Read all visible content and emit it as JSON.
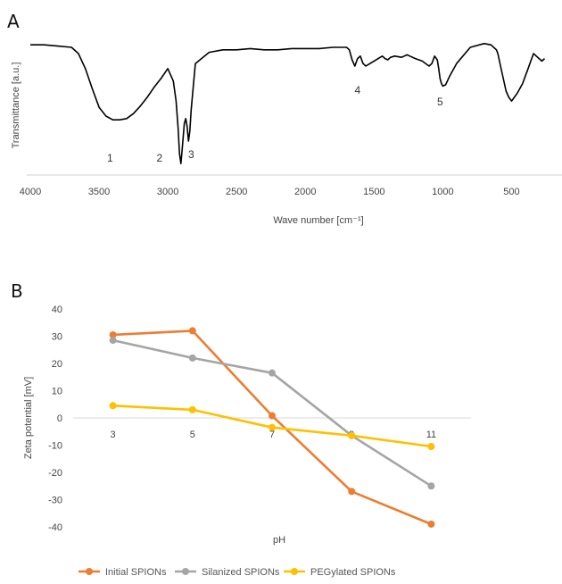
{
  "chart_data": [
    {
      "panel": "A",
      "type": "line",
      "xlabel": "Wave number [cm⁻¹]",
      "ylabel": "Transmittance [a.u.]",
      "xlim": [
        4000,
        250
      ],
      "x_ticks": [
        "4000",
        "3500",
        "3000",
        "2500",
        "2000",
        "1500",
        "1000",
        "500"
      ],
      "x_tick_values": [
        4000,
        3500,
        3000,
        2500,
        2000,
        1500,
        1000,
        500
      ],
      "grid": false,
      "series": [
        {
          "color": "#000000",
          "x": [
            4000,
            3900,
            3800,
            3700,
            3650,
            3600,
            3550,
            3500,
            3450,
            3400,
            3350,
            3300,
            3250,
            3200,
            3150,
            3100,
            3050,
            3000,
            2960,
            2940,
            2925,
            2915,
            2905,
            2895,
            2880,
            2870,
            2860,
            2850,
            2840,
            2830,
            2800,
            2700,
            2600,
            2500,
            2400,
            2300,
            2200,
            2100,
            2000,
            1900,
            1800,
            1700,
            1680,
            1660,
            1640,
            1620,
            1600,
            1580,
            1560,
            1530,
            1500,
            1470,
            1440,
            1420,
            1400,
            1380,
            1350,
            1300,
            1260,
            1240,
            1200,
            1150,
            1100,
            1080,
            1060,
            1040,
            1030,
            1020,
            1010,
            1000,
            980,
            950,
            900,
            800,
            700,
            650,
            630,
            610,
            600,
            580,
            560,
            540,
            520,
            500,
            480,
            460,
            440,
            420,
            400,
            380,
            360,
            340,
            320,
            300,
            280,
            260
          ],
          "y": [
            97,
            97,
            96,
            95,
            90,
            78,
            62,
            47,
            40,
            37,
            37,
            38,
            42,
            48,
            55,
            63,
            70,
            78,
            68,
            52,
            30,
            10,
            2,
            14,
            34,
            38,
            32,
            20,
            28,
            45,
            82,
            91,
            93,
            93,
            94,
            93,
            93,
            94,
            94,
            94,
            95,
            95,
            93,
            85,
            80,
            86,
            88,
            82,
            80,
            82,
            84,
            86,
            88,
            86,
            85,
            87,
            88,
            87,
            89,
            88,
            86,
            84,
            80,
            82,
            88,
            85,
            78,
            70,
            66,
            64,
            65,
            72,
            82,
            95,
            98,
            97,
            95,
            93,
            90,
            80,
            70,
            60,
            55,
            52,
            55,
            58,
            62,
            66,
            72,
            78,
            84,
            90,
            88,
            86,
            84,
            86
          ]
        }
      ],
      "annotations": [
        {
          "text": "1",
          "x": 3420
        },
        {
          "text": "2",
          "x": 3060
        },
        {
          "text": "3",
          "x": 2830
        },
        {
          "text": "4",
          "x": 1620
        },
        {
          "text": "5",
          "x": 1020
        }
      ]
    },
    {
      "panel": "B",
      "type": "line",
      "categories": [
        "3",
        "5",
        "7",
        "9",
        "11"
      ],
      "xlabel": "pH",
      "ylabel": "Zeta potential [mV]",
      "ylim": [
        -40,
        40
      ],
      "y_ticks": [
        "40",
        "30",
        "20",
        "10",
        "0",
        "-10",
        "-20",
        "-30",
        "-40"
      ],
      "y_tick_values": [
        40,
        30,
        20,
        10,
        0,
        -10,
        -20,
        -30,
        -40
      ],
      "grid": false,
      "legend": "bottom",
      "series": [
        {
          "name": "Initial SPIONs",
          "color": "#ed7d31",
          "values": [
            30.5,
            32,
            0.8,
            -27,
            -39
          ]
        },
        {
          "name": "Silanized SPIONs",
          "color": "#a5a5a5",
          "values": [
            28.5,
            22,
            16.5,
            -6.5,
            -25
          ]
        },
        {
          "name": "PEGylated SPIONs",
          "color": "#ffc000",
          "values": [
            4.5,
            3,
            -3.5,
            -6.5,
            -10.5
          ]
        }
      ]
    }
  ],
  "panel_labels": {
    "a": "A",
    "b": "B"
  }
}
